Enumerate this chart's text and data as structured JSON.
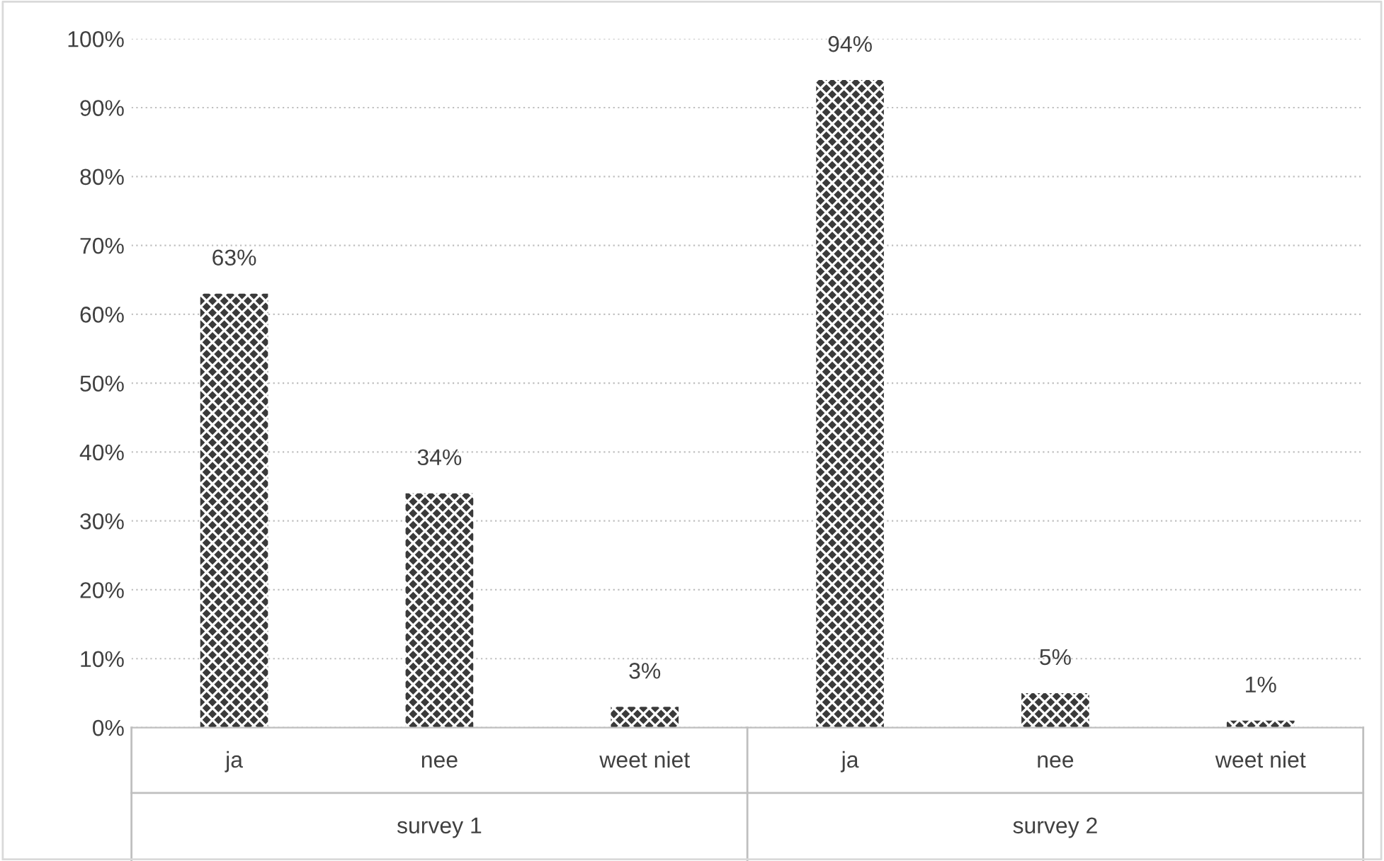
{
  "chart_data": {
    "type": "bar",
    "categories": [
      "ja",
      "nee",
      "weet niet",
      "ja",
      "nee",
      "weet niet"
    ],
    "values": [
      63,
      34,
      3,
      94,
      5,
      1
    ],
    "color": "#3a3a3a",
    "value_labels": [
      "63%",
      "34%",
      "3%",
      "94%",
      "5%",
      "1%"
    ],
    "ylim": [
      0,
      100
    ],
    "yticks": [
      {
        "value": 0,
        "label": "0%"
      },
      {
        "value": 10,
        "label": "10%"
      },
      {
        "value": 20,
        "label": "20%"
      },
      {
        "value": 30,
        "label": "30%"
      },
      {
        "value": 40,
        "label": "40%"
      },
      {
        "value": 50,
        "label": "50%"
      },
      {
        "value": 60,
        "label": "60%"
      },
      {
        "value": 70,
        "label": "70%"
      },
      {
        "value": 80,
        "label": "80%"
      },
      {
        "value": 90,
        "label": "90%"
      },
      {
        "value": 100,
        "label": "100%"
      }
    ],
    "grid": "y",
    "annotations": [
      "survey 1",
      "survey 2"
    ]
  }
}
